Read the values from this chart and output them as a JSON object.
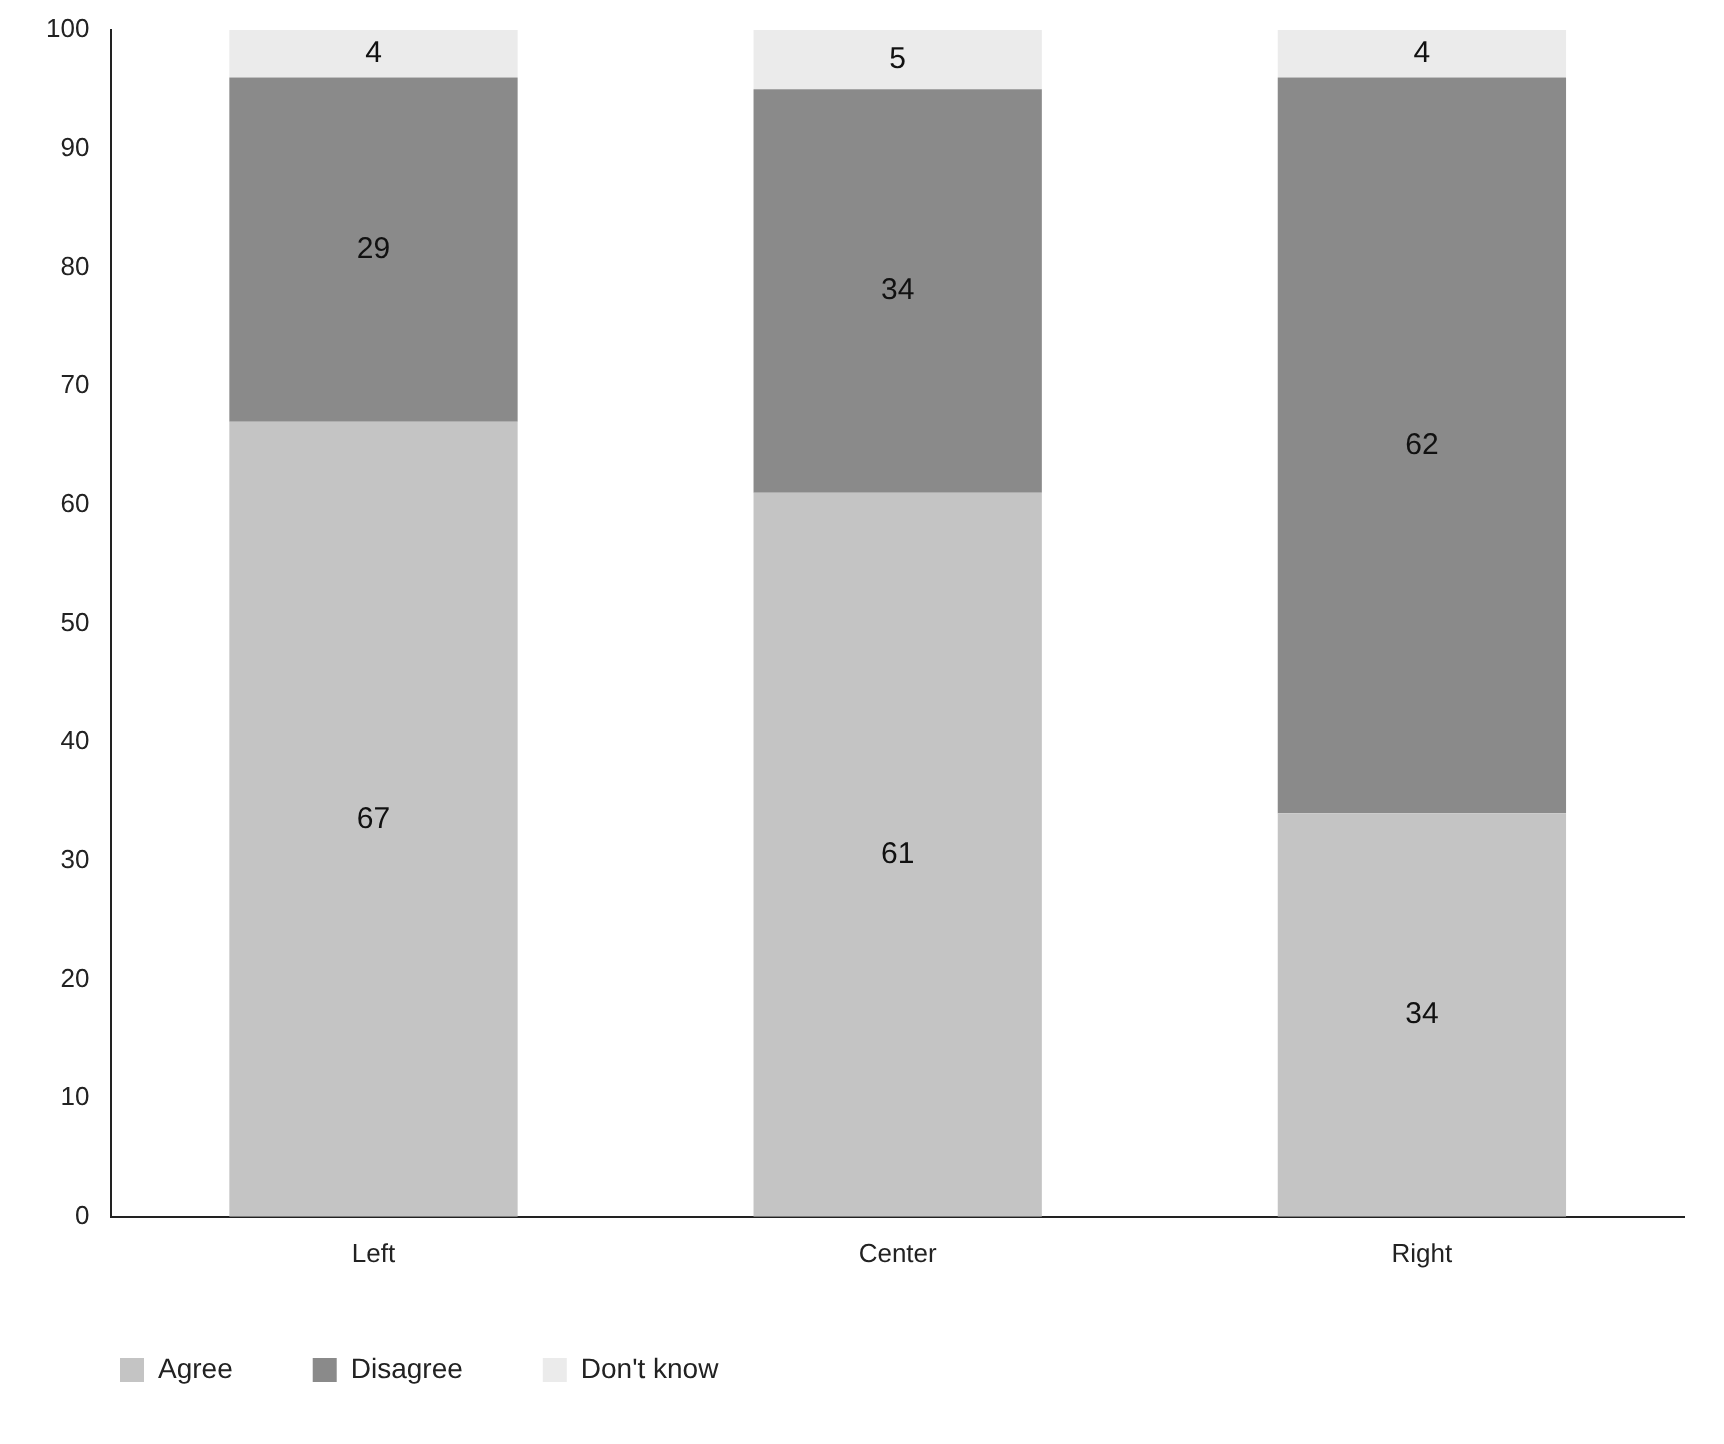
{
  "chart_data": {
    "type": "bar",
    "stacked": true,
    "categories": [
      "Left",
      "Center",
      "Right"
    ],
    "series": [
      {
        "name": "Agree",
        "color": "#c4c4c4",
        "values": [
          67,
          61,
          34
        ]
      },
      {
        "name": "Disagree",
        "color": "#8a8a8a",
        "values": [
          29,
          34,
          62
        ]
      },
      {
        "name": "Don't know",
        "color": "#ebebeb",
        "values": [
          4,
          5,
          4
        ]
      }
    ],
    "ylim": [
      0,
      100
    ],
    "yticks": [
      0,
      10,
      20,
      30,
      40,
      50,
      60,
      70,
      80,
      90,
      100
    ],
    "grid": false,
    "legend": "bottom left",
    "data_labels": true
  }
}
